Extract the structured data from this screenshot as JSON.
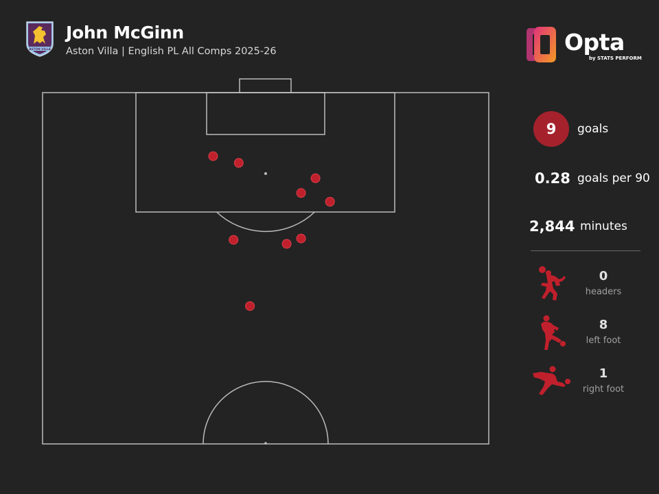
{
  "header": {
    "title": "John McGinn",
    "subtitle": "Aston Villa | English PL All Comps 2025-26",
    "crest_text": "ASTON VILLA",
    "brand": "Opta",
    "brand_tagline": "by STATS PERFORM"
  },
  "stats": {
    "goals_value": "9",
    "goals_label": "goals",
    "per90_value": "0.28",
    "per90_label": "goals per 90",
    "minutes_value": "2,844",
    "minutes_label": "minutes"
  },
  "body_parts": [
    {
      "icon": "header-player-icon",
      "value": "0",
      "label": "headers"
    },
    {
      "icon": "left-foot-player-icon",
      "value": "8",
      "label": "left foot"
    },
    {
      "icon": "right-foot-player-icon",
      "value": "1",
      "label": "right foot"
    }
  ],
  "colors": {
    "background": "#232323",
    "goal_marker": "#c0202c",
    "accent_circle": "#a5222d",
    "pitch_lines": "#bdbdbd",
    "opta_gradient": [
      "#e0337a",
      "#f59a23"
    ]
  },
  "chart_data": {
    "type": "scatter",
    "description_units": "pitch metres: x across pitch from left touchline (0-68), y distance from goal line (0-52.5)",
    "series": [
      {
        "points": [
          {
            "x": 26.0,
            "y": 9.5
          },
          {
            "x": 29.9,
            "y": 10.5
          },
          {
            "x": 41.6,
            "y": 12.8
          },
          {
            "x": 39.4,
            "y": 15.0
          },
          {
            "x": 43.8,
            "y": 16.3
          },
          {
            "x": 29.1,
            "y": 22.0
          },
          {
            "x": 37.2,
            "y": 22.6
          },
          {
            "x": 39.4,
            "y": 21.8
          },
          {
            "x": 31.6,
            "y": 31.9
          }
        ]
      }
    ],
    "xlim": [
      0,
      68
    ],
    "ylim": [
      0,
      52.5
    ]
  }
}
